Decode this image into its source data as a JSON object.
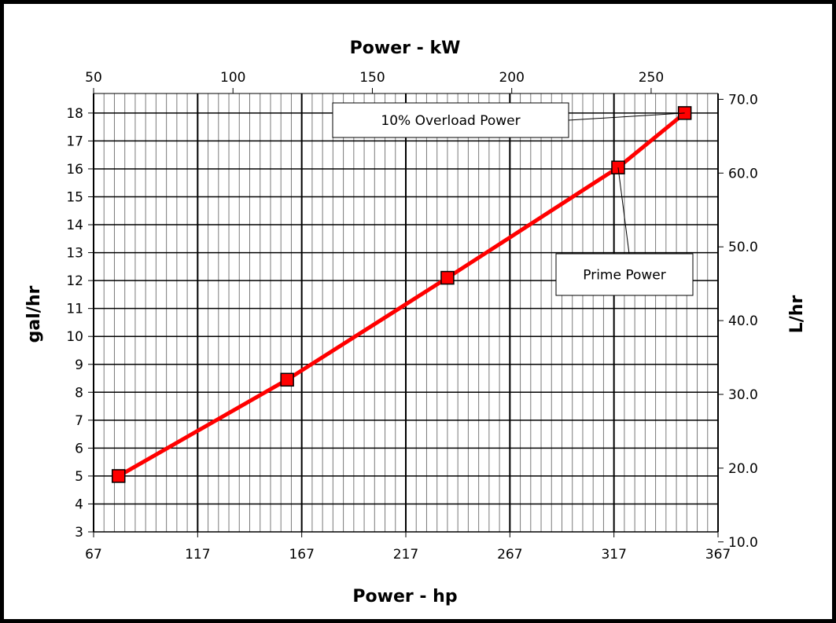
{
  "chart_data": {
    "type": "line",
    "x_bottom": {
      "label": "Power - hp",
      "range": [
        67,
        367
      ],
      "ticks": [
        67,
        117,
        167,
        217,
        267,
        317,
        367
      ],
      "minor_step": 5
    },
    "x_top": {
      "label": "Power - kW",
      "range": [
        50,
        274
      ],
      "ticks": [
        50,
        100,
        150,
        200,
        250
      ]
    },
    "y_left": {
      "label": "gal/hr",
      "range": [
        3,
        18.7
      ],
      "ticks": [
        3,
        4,
        5,
        6,
        7,
        8,
        9,
        10,
        11,
        12,
        13,
        14,
        15,
        16,
        17,
        18
      ]
    },
    "y_right": {
      "label": "L/hr",
      "range": [
        11.36,
        70.79
      ],
      "ticks": [
        "10.0",
        "20.0",
        "30.0",
        "40.0",
        "50.0",
        "60.0",
        "70.0"
      ]
    },
    "series": [
      {
        "color": "#ff0000",
        "marker_color": "#ff0000",
        "x": [
          79,
          160,
          237,
          319,
          351
        ],
        "y": [
          5.0,
          8.45,
          12.1,
          16.05,
          18.0
        ]
      }
    ],
    "grid": true,
    "legend": "none",
    "annotations": [
      {
        "text": "10% Overload Power",
        "target_index": 4
      },
      {
        "text": "Prime Power",
        "target_index": 3
      }
    ]
  }
}
